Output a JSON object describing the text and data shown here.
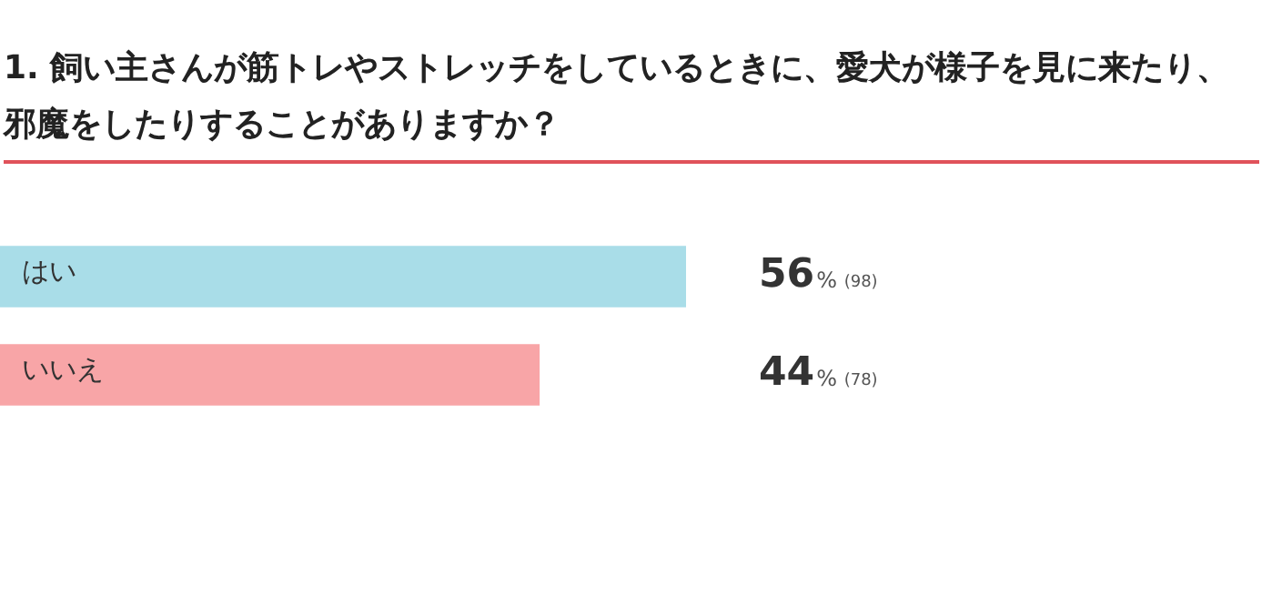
{
  "chart_data": {
    "type": "bar",
    "orientation": "horizontal",
    "title": "1. 飼い主さんが筋トレやストレッチをしているときに、愛犬が様子を見に来たり、邪魔をしたりすることがありますか？",
    "categories": [
      "はい",
      "いいえ"
    ],
    "values": [
      56,
      44
    ],
    "colors": [
      "#a9dde8",
      "#f8a5a7"
    ],
    "value_labels": [
      "56% (98)",
      "44% (78)"
    ],
    "legend": false
  }
}
